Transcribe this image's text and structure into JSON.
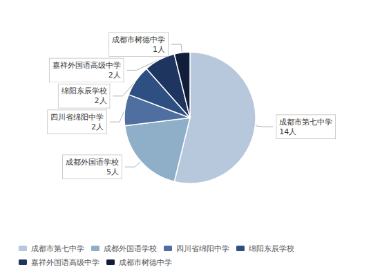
{
  "chart_data": {
    "type": "pie",
    "categories": [
      "成都市第七中学",
      "成都外国语学校",
      "四川省绵阳中学",
      "绵阳东辰学校",
      "嘉祥外国语高级中学",
      "成都市树德中学"
    ],
    "values": [
      14,
      5,
      2,
      2,
      2,
      1
    ],
    "value_labels": [
      "成都市第七中学\n14人",
      "成都外国语学校\n5人",
      "四川省绵阳中学\n2人",
      "绵阳东辰学校\n2人",
      "嘉祥外国语高级中学\n2人",
      "成都市树德中学\n1人"
    ],
    "colors": [
      "#b8c8dc",
      "#8faec8",
      "#4f6fa0",
      "#2e4f82",
      "#1e3560",
      "#111e3a"
    ],
    "data_labels": true,
    "legend": "lower left"
  }
}
